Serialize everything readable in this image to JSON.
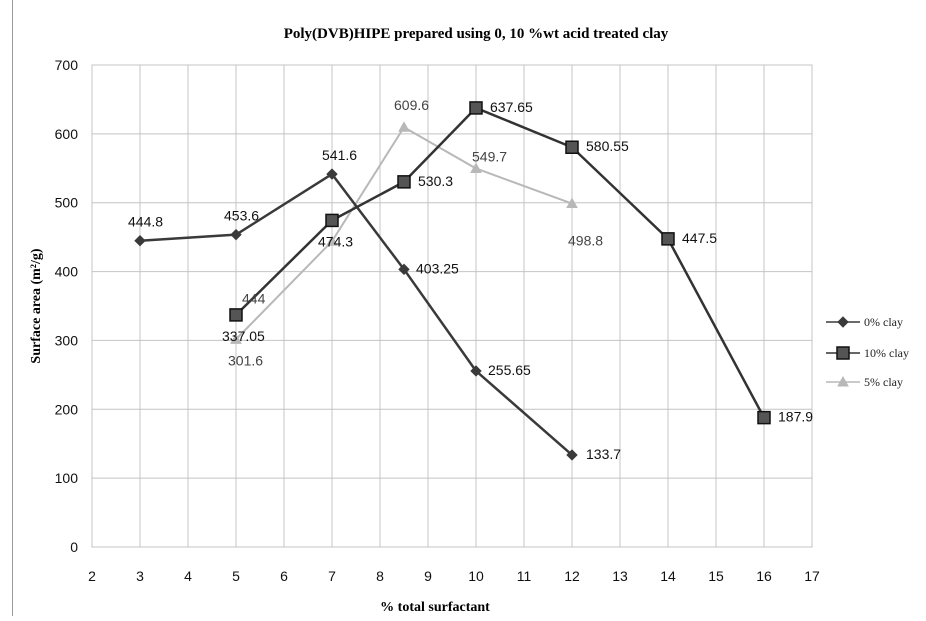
{
  "chart_data": {
    "type": "line",
    "title": "Poly(DVB)HIPE prepared using 0, 10 %wt acid treated clay",
    "xlabel": "% total surfactant",
    "ylabel": "Surface area (m²/g)",
    "xlim": [
      2,
      17
    ],
    "ylim": [
      0,
      700
    ],
    "xticks": [
      2,
      3,
      4,
      5,
      6,
      7,
      8,
      9,
      10,
      11,
      12,
      13,
      14,
      15,
      16,
      17
    ],
    "yticks": [
      0,
      100,
      200,
      300,
      400,
      500,
      600,
      700
    ],
    "grid": true,
    "legend_position": "right",
    "series": [
      {
        "name": "0% clay",
        "color": "#3a3a3a",
        "label_color": "#111111",
        "marker": "diamond",
        "x": [
          3,
          5,
          7,
          8.5,
          10,
          12
        ],
        "y": [
          444.8,
          453.6,
          541.6,
          403.25,
          255.65,
          133.7
        ],
        "labels": [
          "444.8",
          "453.6",
          "541.6",
          "403.25",
          "255.65",
          "133.7"
        ]
      },
      {
        "name": "10% clay",
        "color": "#333333",
        "label_color": "#111111",
        "marker": "square",
        "x": [
          5,
          7,
          8.5,
          10,
          12,
          14,
          16
        ],
        "y": [
          337.05,
          474.3,
          530.3,
          637.65,
          580.55,
          447.5,
          187.9
        ],
        "labels": [
          "337.05",
          "474.3",
          "530.3",
          "637.65",
          "580.55",
          "447.5",
          "187.9"
        ]
      },
      {
        "name": "5% clay",
        "color": "#b8b8b8",
        "label_color": "#444444",
        "marker": "triangle",
        "x": [
          5,
          7,
          8.5,
          10,
          12
        ],
        "y": [
          301.6,
          444,
          609.6,
          549.7,
          498.8
        ],
        "labels": [
          "301.6",
          "444",
          "609.6",
          "549.7",
          "498.8"
        ]
      }
    ]
  }
}
